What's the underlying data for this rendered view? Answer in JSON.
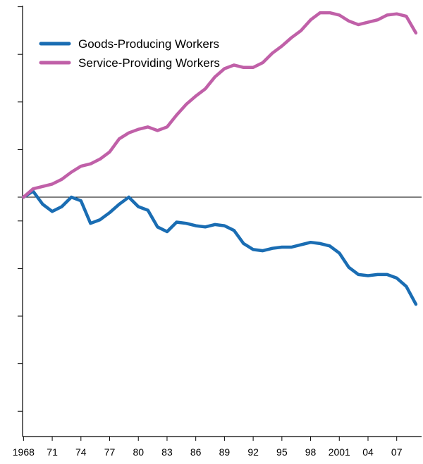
{
  "chart_data": {
    "type": "line",
    "x_tick_labels": [
      "1968",
      "71",
      "74",
      "77",
      "80",
      "83",
      "86",
      "89",
      "92",
      "95",
      "98",
      "2001",
      "04",
      "07"
    ],
    "x": [
      1968,
      1969,
      1970,
      1971,
      1972,
      1973,
      1974,
      1975,
      1976,
      1977,
      1978,
      1979,
      1980,
      1981,
      1982,
      1983,
      1984,
      1985,
      1986,
      1987,
      1988,
      1989,
      1990,
      1991,
      1992,
      1993,
      1994,
      1995,
      1996,
      1997,
      1998,
      1999,
      2000,
      2001,
      2002,
      2003,
      2004,
      2005,
      2006,
      2007,
      2008,
      2009
    ],
    "xlim": [
      1967.9,
      2009.6
    ],
    "ylim": [
      -9,
      9
    ],
    "y_ticks": [
      -9,
      -7,
      -5,
      -3,
      -1,
      0,
      2,
      4,
      6,
      8
    ],
    "zero_line": 0,
    "legend": {
      "position": "top-left"
    },
    "series": [
      {
        "name": "Goods-Producing Workers",
        "color": "#1a6db3",
        "values": [
          0,
          0.25,
          -0.3,
          -0.6,
          -0.4,
          0.0,
          -0.15,
          -1.1,
          -0.95,
          -0.65,
          -0.3,
          0.0,
          -0.4,
          -0.55,
          -1.25,
          -1.45,
          -1.05,
          -1.1,
          -1.2,
          -1.25,
          -1.15,
          -1.2,
          -1.4,
          -1.95,
          -2.2,
          -2.25,
          -2.15,
          -2.1,
          -2.1,
          -2.0,
          -1.9,
          -1.95,
          -2.05,
          -2.35,
          -2.95,
          -3.25,
          -3.3,
          -3.25,
          -3.25,
          -3.4,
          -3.75,
          -4.5
        ]
      },
      {
        "name": "Service-Providing Workers",
        "color": "#c060a8",
        "values": [
          0,
          0.35,
          0.45,
          0.55,
          0.75,
          1.05,
          1.3,
          1.4,
          1.6,
          1.9,
          2.45,
          2.7,
          2.85,
          2.95,
          2.8,
          2.95,
          3.45,
          3.9,
          4.25,
          4.55,
          5.05,
          5.4,
          5.55,
          5.45,
          5.45,
          5.65,
          6.05,
          6.35,
          6.7,
          7.0,
          7.45,
          7.75,
          7.75,
          7.65,
          7.4,
          7.25,
          7.35,
          7.45,
          7.65,
          7.7,
          7.6,
          6.9
        ]
      }
    ]
  }
}
